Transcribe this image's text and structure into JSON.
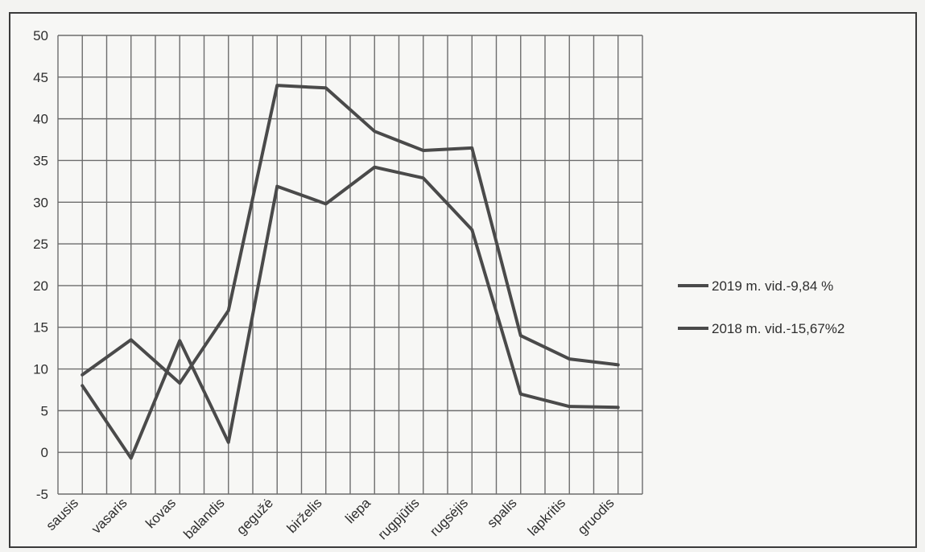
{
  "chart_data": {
    "type": "line",
    "categories": [
      "sausis",
      "vasaris",
      "kovas",
      "balandis",
      "gegužė",
      "birželis",
      "liepa",
      "rugpjūtis",
      "rugsėjis",
      "spalis",
      "lapkritis",
      "gruodis"
    ],
    "series": [
      {
        "name": "2019 m. vid.-9,84 %",
        "values": [
          9.3,
          13.5,
          8.3,
          17.0,
          44.0,
          43.7,
          38.5,
          36.2,
          36.5,
          14.0,
          11.2,
          10.5
        ]
      },
      {
        "name": "2018 m. vid.-15,67%2",
        "values": [
          8.0,
          -0.7,
          13.4,
          1.2,
          31.9,
          29.8,
          34.2,
          32.9,
          26.7,
          7.0,
          5.5,
          5.4
        ]
      }
    ],
    "yticks": [
      "50",
      "45",
      "40",
      "35",
      "30",
      "25",
      "20",
      "15",
      "10",
      "5",
      "0",
      "-5"
    ],
    "ylim": [
      -5,
      50
    ],
    "grid": true,
    "legend_position": "right",
    "colors": {
      "line": "#4a4a4a",
      "grid": "#6d6d6d",
      "frame": "#3a3a3a"
    }
  }
}
